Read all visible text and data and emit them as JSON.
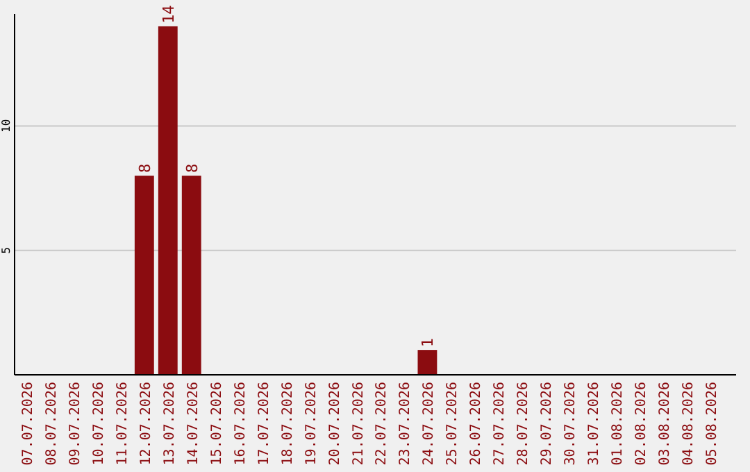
{
  "chart_data": {
    "type": "bar",
    "categories": [
      "07.07.2026",
      "08.07.2026",
      "09.07.2026",
      "10.07.2026",
      "11.07.2026",
      "12.07.2026",
      "13.07.2026",
      "14.07.2026",
      "15.07.2026",
      "16.07.2026",
      "17.07.2026",
      "18.07.2026",
      "19.07.2026",
      "20.07.2026",
      "21.07.2026",
      "22.07.2026",
      "23.07.2026",
      "24.07.2026",
      "25.07.2026",
      "26.07.2026",
      "27.07.2026",
      "28.07.2026",
      "29.07.2026",
      "30.07.2026",
      "31.07.2026",
      "01.08.2026",
      "02.08.2026",
      "03.08.2026",
      "04.08.2026",
      "05.08.2026"
    ],
    "values": [
      0,
      0,
      0,
      0,
      0,
      8,
      14,
      8,
      0,
      0,
      0,
      0,
      0,
      0,
      0,
      0,
      0,
      1,
      0,
      0,
      0,
      0,
      0,
      0,
      0,
      0,
      0,
      0,
      0,
      0
    ],
    "value_labels": [
      null,
      null,
      null,
      null,
      null,
      "8",
      "14",
      "8",
      null,
      null,
      null,
      null,
      null,
      null,
      null,
      null,
      null,
      "1",
      null,
      null,
      null,
      null,
      null,
      null,
      null,
      null,
      null,
      null,
      null,
      null
    ],
    "color": "#8b0c10",
    "ylim": [
      0,
      14.5
    ],
    "yticks": [
      5,
      10
    ],
    "grid": "y"
  }
}
